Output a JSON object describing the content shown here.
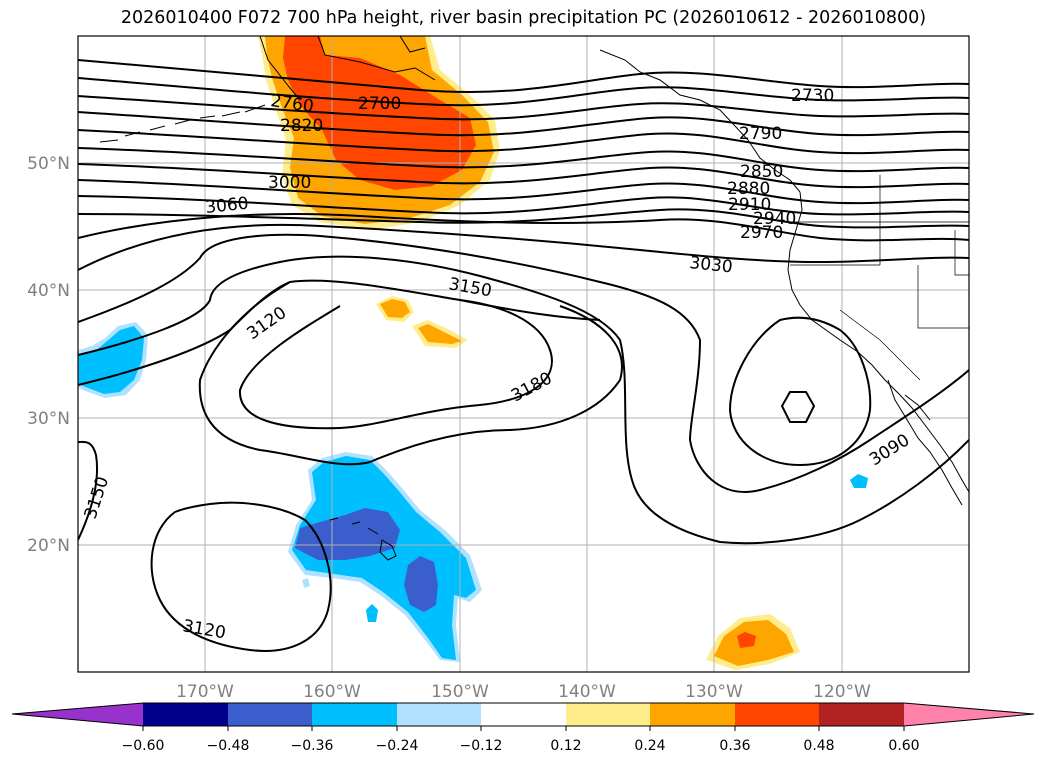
{
  "title": "2026010400 F072 700 hPa height, river basin precipitation PC (2026010612 - 2026010800)",
  "lat_labels": [
    "50°N",
    "40°N",
    "30°N",
    "20°N"
  ],
  "lon_labels": [
    "170°W",
    "160°W",
    "150°W",
    "140°W",
    "130°W",
    "120°W"
  ],
  "colorbar": {
    "colors": [
      "#9932cc",
      "#00008b",
      "#3a5fcd",
      "#00bfff",
      "#b0e2ff",
      "#ffffff",
      "#ffec8b",
      "#ffa500",
      "#ff4500",
      "#b22222",
      "#ff82ab"
    ],
    "tick_labels": [
      "−0.60",
      "−0.48",
      "−0.36",
      "−0.24",
      "−0.12",
      "0.12",
      "0.24",
      "0.36",
      "0.48",
      "0.60"
    ]
  },
  "contour_labels": [
    "2730",
    "2700",
    "2760",
    "2820",
    "3000",
    "3060",
    "2790",
    "2850",
    "2880",
    "2910",
    "2940",
    "2970",
    "3030",
    "3150",
    "3120",
    "3180",
    "3090",
    "3150",
    "3120"
  ],
  "colors": {
    "grid": "#b0b0b0",
    "contour": "#000000",
    "axis_label": "#808080"
  }
}
